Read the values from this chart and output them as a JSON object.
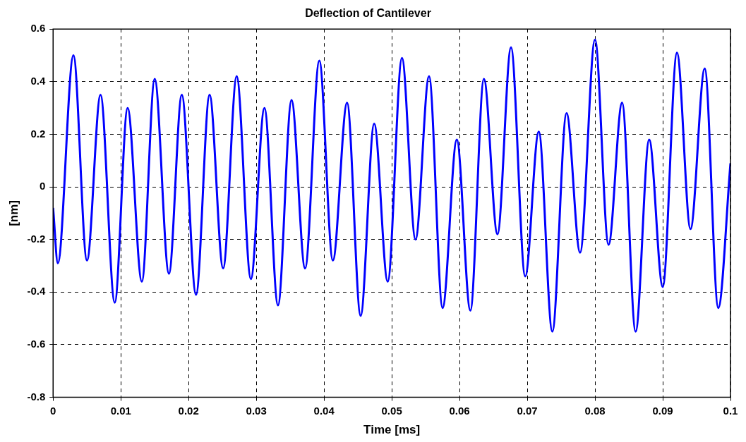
{
  "chart_data": {
    "type": "line",
    "title": "Deflection of Cantilever",
    "xlabel": "Time [ms]",
    "ylabel": "[nm]",
    "xlim": [
      0,
      0.1
    ],
    "xticks": [
      0,
      0.01,
      0.02,
      0.03,
      0.04,
      0.05,
      0.06,
      0.07,
      0.08,
      0.09,
      0.1
    ],
    "ylim": [
      -0.8,
      0.6
    ],
    "yticks": [
      -0.8,
      -0.6,
      -0.4,
      -0.2,
      0,
      0.2,
      0.4,
      0.6
    ],
    "grid": true,
    "legend": false,
    "marker": "none",
    "line_style": "solid",
    "series": [
      {
        "color": "#0000ff",
        "x": [
          0,
          0.0007,
          0.003,
          0.005,
          0.007,
          0.0091,
          0.011,
          0.0131,
          0.015,
          0.0171,
          0.019,
          0.0211,
          0.0231,
          0.0251,
          0.0271,
          0.0292,
          0.0312,
          0.0332,
          0.0352,
          0.0372,
          0.0393,
          0.0413,
          0.0434,
          0.0454,
          0.0474,
          0.0494,
          0.0515,
          0.0535,
          0.0555,
          0.0575,
          0.0596,
          0.0616,
          0.0636,
          0.0656,
          0.0676,
          0.0697,
          0.0717,
          0.0737,
          0.0758,
          0.0778,
          0.08,
          0.082,
          0.084,
          0.086,
          0.088,
          0.09,
          0.0921,
          0.0941,
          0.0962,
          0.0982,
          0.1
        ],
        "values": [
          -0.08,
          -0.29,
          0.5,
          -0.28,
          0.35,
          -0.44,
          0.3,
          -0.36,
          0.41,
          -0.33,
          0.35,
          -0.41,
          0.35,
          -0.31,
          0.42,
          -0.35,
          0.3,
          -0.45,
          0.33,
          -0.31,
          0.48,
          -0.28,
          0.32,
          -0.49,
          0.24,
          -0.36,
          0.49,
          -0.2,
          0.42,
          -0.46,
          0.18,
          -0.47,
          0.41,
          -0.18,
          0.53,
          -0.34,
          0.21,
          -0.55,
          0.28,
          -0.25,
          0.56,
          -0.22,
          0.32,
          -0.55,
          0.18,
          -0.38,
          0.51,
          -0.16,
          0.45,
          -0.46,
          0.09
        ]
      }
    ]
  }
}
